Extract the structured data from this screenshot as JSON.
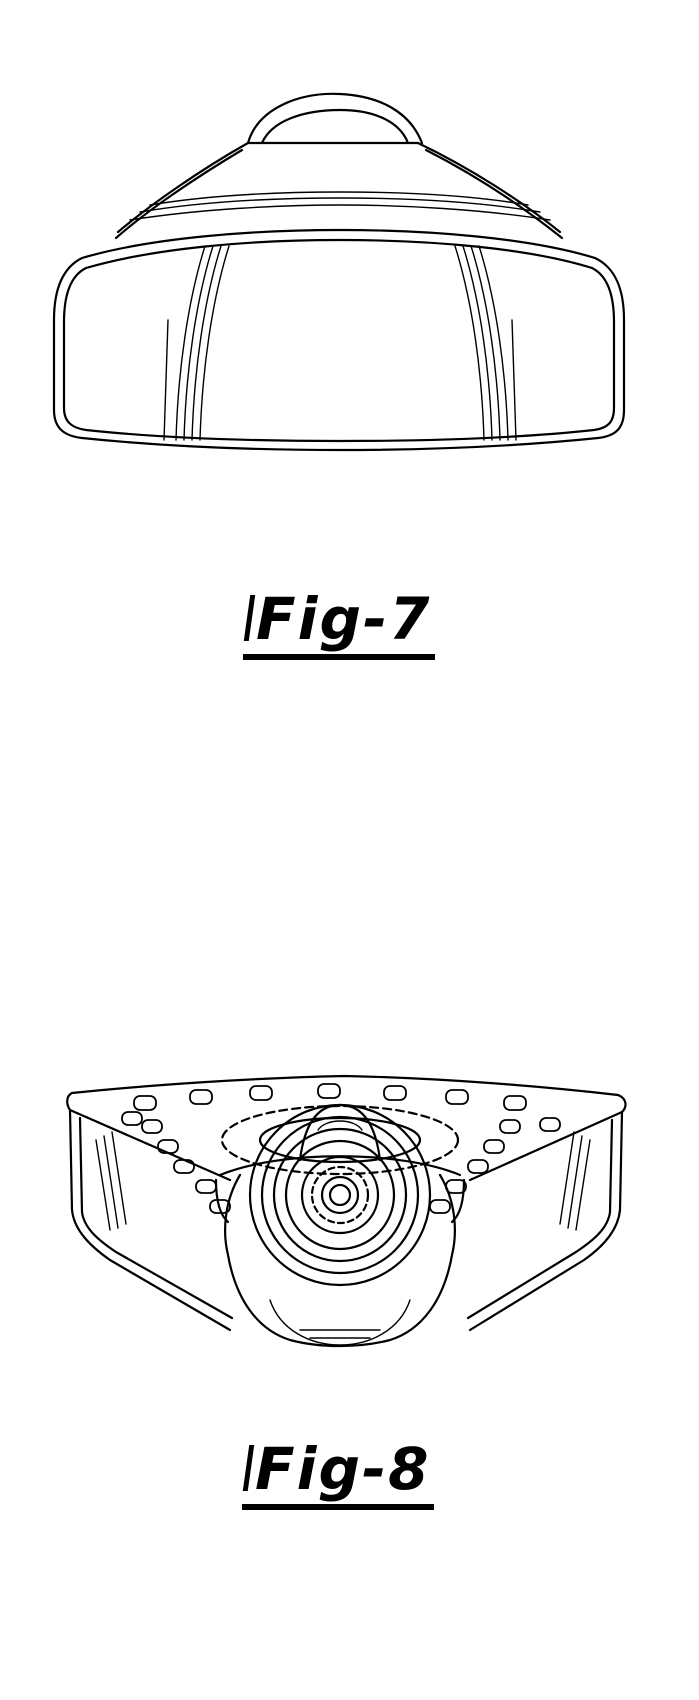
{
  "figures": [
    {
      "caption": "Fig-7"
    },
    {
      "caption": "Fig-8"
    }
  ]
}
